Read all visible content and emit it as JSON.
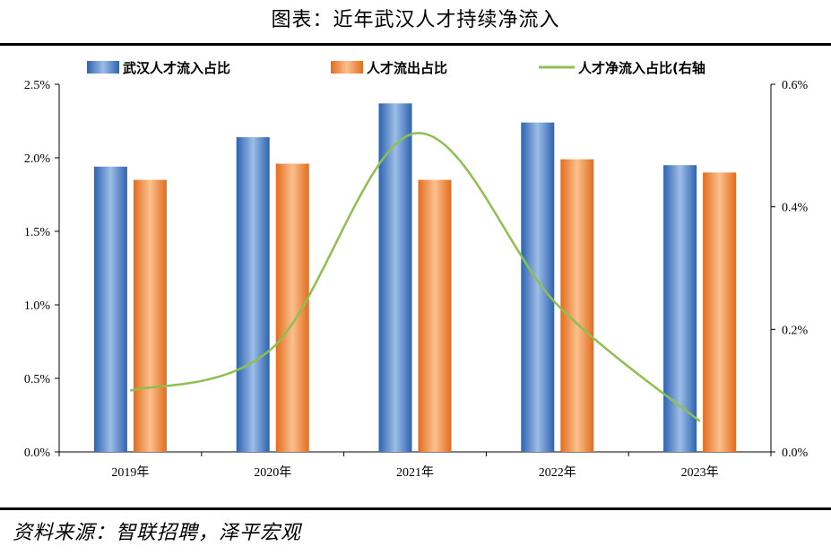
{
  "header": {
    "title": "图表：近年武汉人才持续净流入"
  },
  "footer": {
    "source": "资料来源：智联招聘，泽平宏观"
  },
  "chart_data": {
    "type": "bar",
    "categories": [
      "2019年",
      "2020年",
      "2021年",
      "2022年",
      "2023年"
    ],
    "series": [
      {
        "name": "武汉人才流入占比",
        "kind": "bar",
        "axis": "left",
        "color": "#4a7fc0",
        "values": [
          1.94,
          2.14,
          2.37,
          2.24,
          1.95
        ]
      },
      {
        "name": "人才流出占比",
        "kind": "bar",
        "axis": "left",
        "color": "#f08a3c",
        "values": [
          1.85,
          1.96,
          1.85,
          1.99,
          1.9
        ]
      },
      {
        "name": "人才净流入占比(右轴",
        "kind": "line",
        "axis": "right",
        "color": "#8fbf50",
        "values": [
          0.1,
          0.17,
          0.52,
          0.24,
          0.05
        ]
      }
    ],
    "y_left": {
      "min": 0,
      "max": 2.5,
      "ticks": [
        "0.0%",
        "0.5%",
        "1.0%",
        "1.5%",
        "2.0%",
        "2.5%"
      ]
    },
    "y_right": {
      "min": 0,
      "max": 0.6,
      "ticks": [
        "0.0%",
        "0.2%",
        "0.4%",
        "0.6%"
      ]
    },
    "legend": "top",
    "grid": false
  }
}
